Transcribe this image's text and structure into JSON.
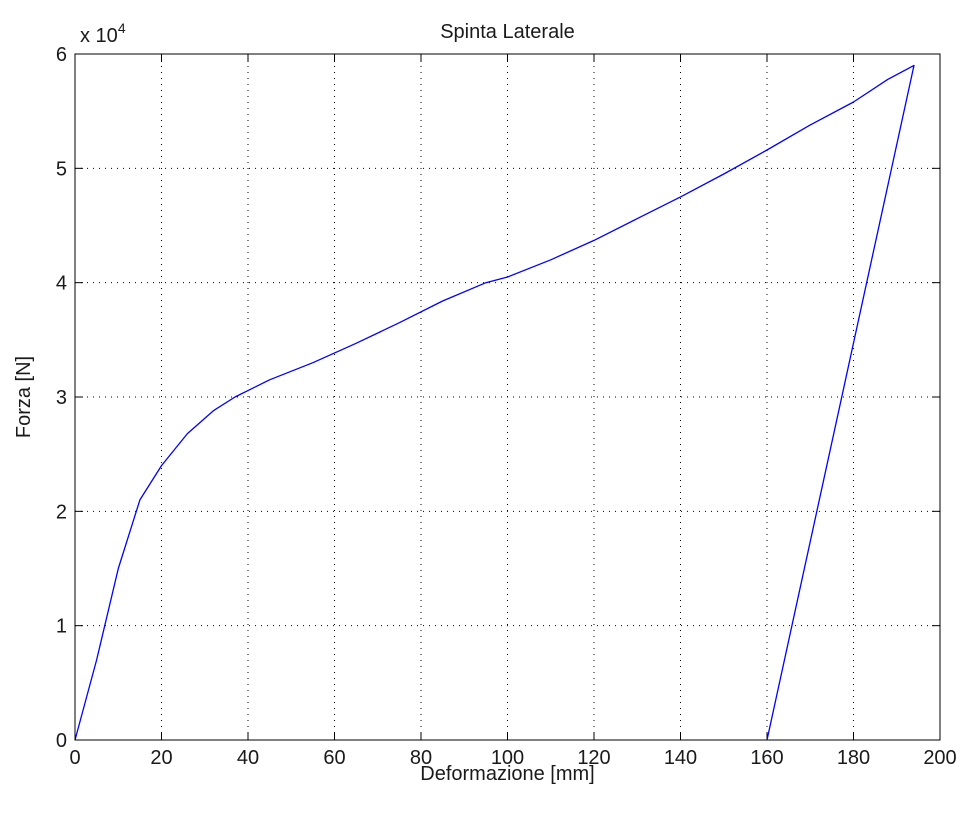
{
  "chart_data": {
    "type": "line",
    "title": "Spinta Laterale",
    "xlabel": "Deformazione [mm]",
    "ylabel": "Forza [N]",
    "y_exponent_base": "x 10",
    "y_exponent_power": "4",
    "y_multiplier": 10000,
    "xlim": [
      0,
      200
    ],
    "ylim": [
      0,
      6
    ],
    "x_ticks": [
      0,
      20,
      40,
      60,
      80,
      100,
      120,
      140,
      160,
      180,
      200
    ],
    "y_ticks": [
      0,
      1,
      2,
      3,
      4,
      5,
      6
    ],
    "x_tick_labels": [
      "0",
      "20",
      "40",
      "60",
      "80",
      "100",
      "120",
      "140",
      "160",
      "180",
      "200"
    ],
    "y_tick_labels": [
      "0",
      "1",
      "2",
      "3",
      "4",
      "5",
      "6"
    ],
    "grid": true,
    "legend": "none",
    "series": [
      {
        "color": "#0000ff",
        "x": [
          0,
          5,
          10,
          15,
          20,
          26,
          32,
          37,
          45,
          55,
          65,
          75,
          85,
          95,
          100,
          110,
          120,
          130,
          140,
          150,
          160,
          170,
          180,
          188,
          194,
          160
        ],
        "y": [
          0,
          0.7,
          1.5,
          2.1,
          2.4,
          2.68,
          2.88,
          3.0,
          3.15,
          3.3,
          3.47,
          3.65,
          3.84,
          4.0,
          4.05,
          4.2,
          4.37,
          4.56,
          4.75,
          4.95,
          5.16,
          5.38,
          5.58,
          5.78,
          5.9,
          0
        ]
      }
    ]
  }
}
